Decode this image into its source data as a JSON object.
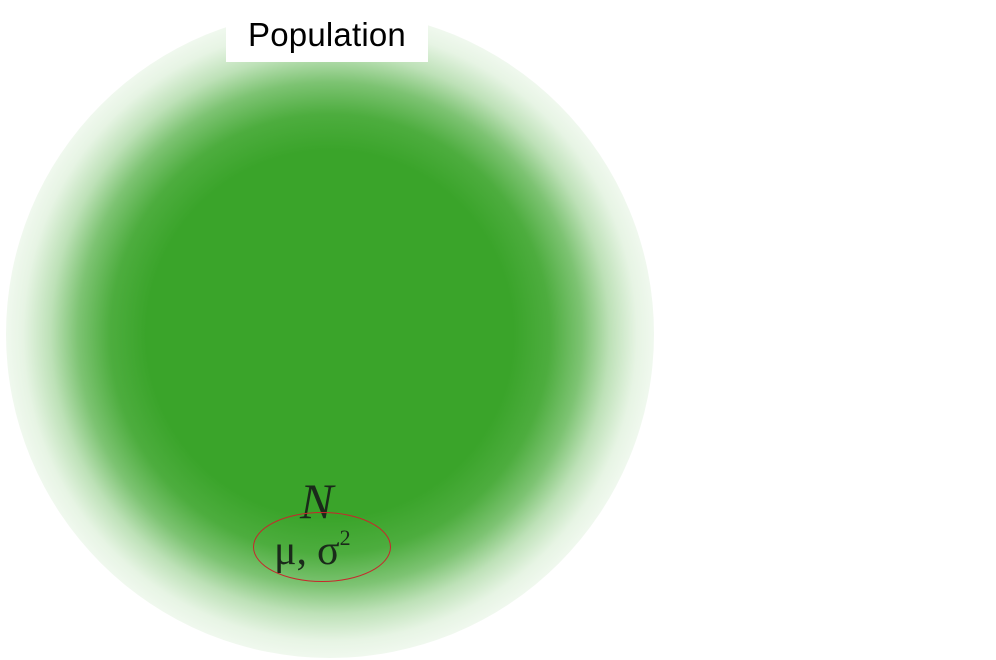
{
  "diagram": {
    "title": "Population",
    "symbol": "N",
    "parameters": {
      "mean": "μ",
      "separator": ",",
      "variance_base": "σ",
      "variance_exponent": "2"
    },
    "colors": {
      "population_fill": "#3aa42a",
      "ellipse_stroke": "#c8262c",
      "text": "#000000"
    }
  }
}
